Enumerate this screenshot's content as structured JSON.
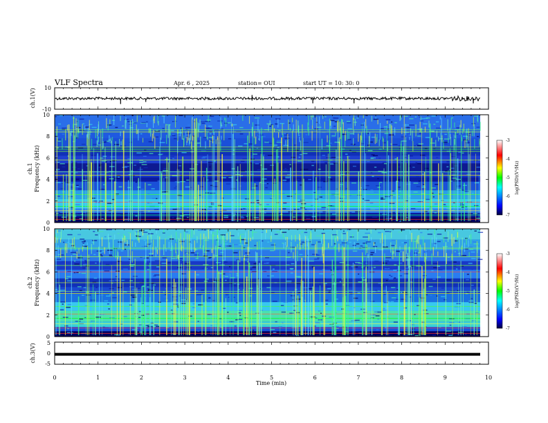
{
  "header": {
    "title": "VLF Spectra",
    "date": "Apr. 6  , 2025",
    "station": "station= OUI",
    "start": "start  UT =   10: 30: 0"
  },
  "chart_data": [
    {
      "type": "line",
      "panel": "ch1-waveform",
      "ylabel": "ch.1(V)",
      "ylim": [
        -10,
        10
      ],
      "yticks": [
        "10",
        "-10"
      ],
      "xlim": [
        0,
        10
      ]
    },
    {
      "type": "heatmap",
      "panel": "ch1-spectrogram",
      "ylabel": "ch.1\nFrequency  (kHz)",
      "ylim": [
        0,
        10
      ],
      "yticks": [
        "0",
        "2",
        "4",
        "6",
        "8",
        "10"
      ],
      "colorbar": {
        "label": "log(PSD)(V²/Hz)",
        "range": [
          -7,
          -3
        ],
        "ticks": [
          "-3",
          "-4",
          "-5",
          "-6",
          "-7"
        ]
      }
    },
    {
      "type": "heatmap",
      "panel": "ch2-spectrogram",
      "ylabel": "ch.2\nFrequency  (kHz)",
      "ylim": [
        0,
        10
      ],
      "yticks": [
        "0",
        "2",
        "4",
        "6",
        "8",
        "10"
      ],
      "colorbar": {
        "label": "log(PSD)(V²/Hz)",
        "range": [
          -7,
          -3
        ],
        "ticks": [
          "-3",
          "-4",
          "-5",
          "-6",
          "-7"
        ]
      }
    },
    {
      "type": "line",
      "panel": "ch3-waveform",
      "ylabel": "ch.3(V)",
      "ylim": [
        -5,
        5
      ],
      "yticks": [
        "5",
        "0",
        "-5"
      ],
      "level": -0.5,
      "xlim": [
        0,
        10
      ]
    }
  ],
  "xaxis": {
    "label": "Time  (min)",
    "ticks": [
      "0",
      "1",
      "2",
      "3",
      "4",
      "5",
      "6",
      "7",
      "8",
      "9",
      "10"
    ]
  }
}
